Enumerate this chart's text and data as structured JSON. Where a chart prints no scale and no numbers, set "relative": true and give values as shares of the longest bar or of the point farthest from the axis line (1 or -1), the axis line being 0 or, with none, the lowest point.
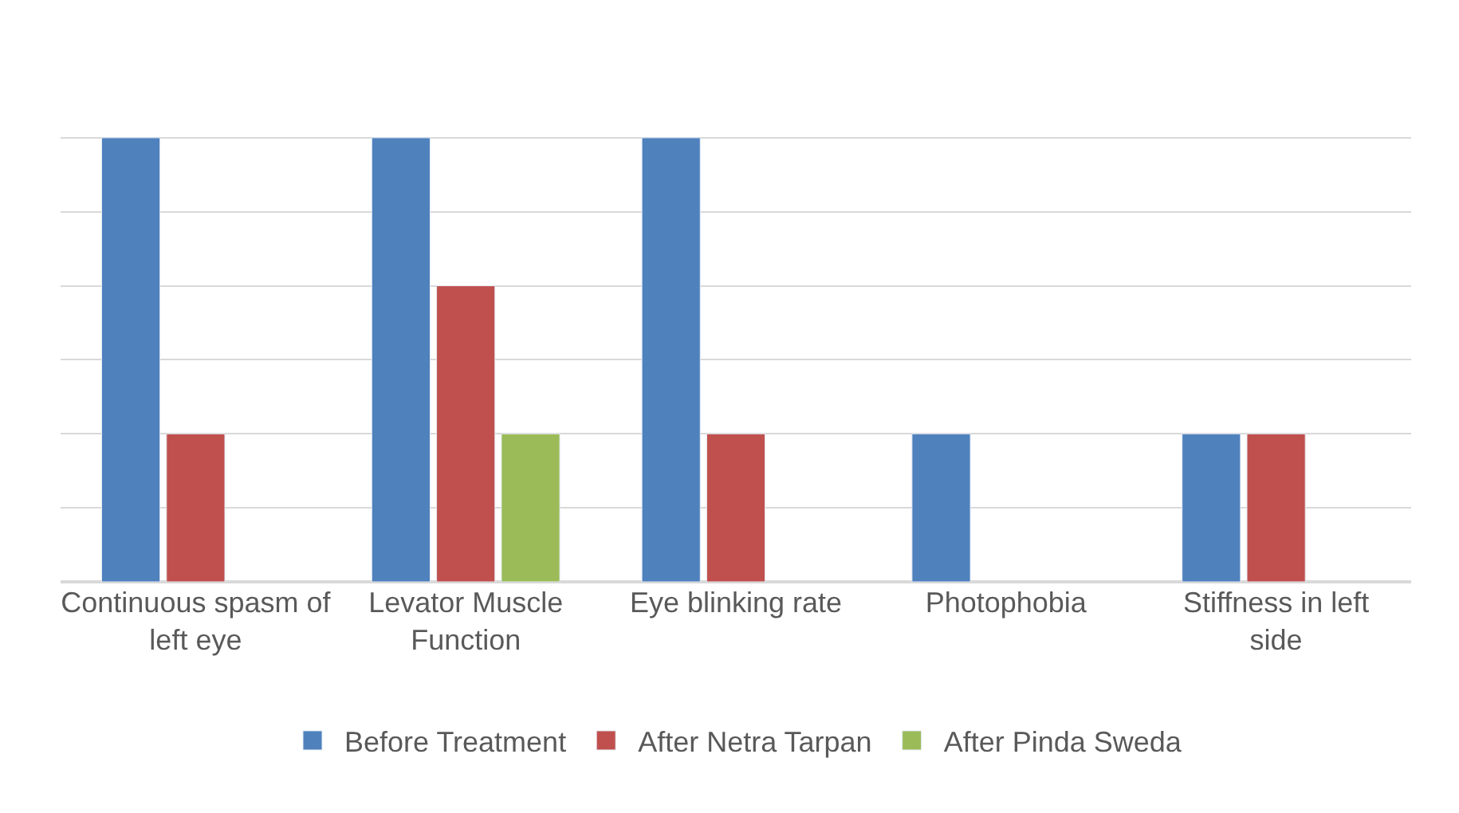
{
  "chart_data": {
    "type": "bar",
    "relative": true,
    "grid": "y",
    "legend": "bottom",
    "categories": [
      "Continuous spasm of left eye",
      "Levator Muscle Function",
      "Eye blinking rate",
      "Photophobia",
      "Stiffness in left side"
    ],
    "series": [
      {
        "name": "Before Treatment",
        "color": "#4f81bd",
        "values": [
          1,
          1,
          1,
          0.3333,
          0.3333
        ]
      },
      {
        "name": "After Netra Tarpan",
        "color": "#c0504d",
        "values": [
          0.3333,
          0.6667,
          0.3333,
          null,
          0.3333
        ]
      },
      {
        "name": "After Pinda Sweda",
        "color": "#9bbb59",
        "values": [
          null,
          0.3333,
          null,
          null,
          null
        ]
      }
    ]
  }
}
